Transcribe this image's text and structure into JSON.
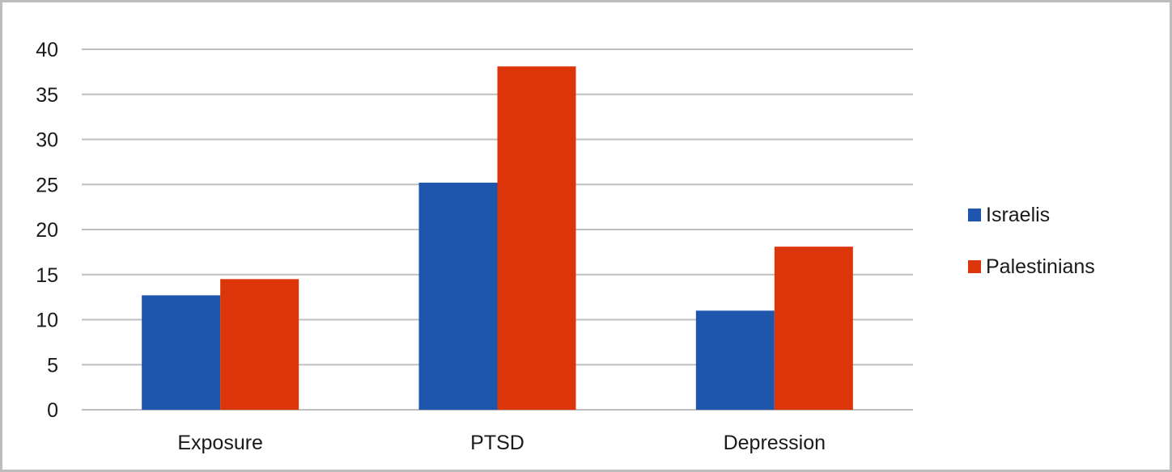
{
  "chart_data": {
    "type": "bar",
    "title": "",
    "xlabel": "",
    "ylabel": "",
    "categories": [
      "Exposure",
      "PTSD",
      "Depression"
    ],
    "series": [
      {
        "name": "Israelis",
        "values": [
          12.7,
          25.2,
          11
        ],
        "color": "#1f56ad"
      },
      {
        "name": "Palestinians",
        "values": [
          14.5,
          38.1,
          18.1
        ],
        "color": "#dc3509"
      }
    ],
    "ylim": [
      0,
      40
    ],
    "yticks": [
      0,
      5,
      10,
      15,
      20,
      25,
      30,
      35,
      40
    ],
    "grid": true,
    "legend_position": "right"
  }
}
